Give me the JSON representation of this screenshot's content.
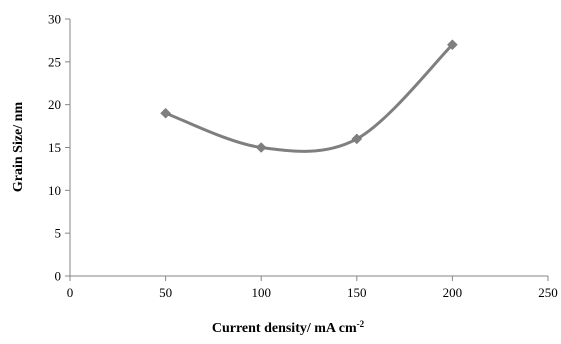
{
  "chart_data": {
    "type": "line",
    "title": "",
    "xlabel": "Current density/ mA cm",
    "xlabel_superscript": "-2",
    "ylabel": "Grain Size/ nm",
    "xlim": [
      0,
      250
    ],
    "ylim": [
      0,
      30
    ],
    "xticks": [
      "0",
      "50",
      "100",
      "150",
      "200",
      "250"
    ],
    "yticks": [
      "0",
      "5",
      "10",
      "15",
      "20",
      "25",
      "30"
    ],
    "grid": false,
    "legend": "none",
    "smooth": true,
    "series": [
      {
        "x": [
          50,
          100,
          150,
          200
        ],
        "y": [
          19,
          15,
          16,
          27
        ],
        "color": "#7f7f7f",
        "marker": "diamond"
      }
    ]
  }
}
